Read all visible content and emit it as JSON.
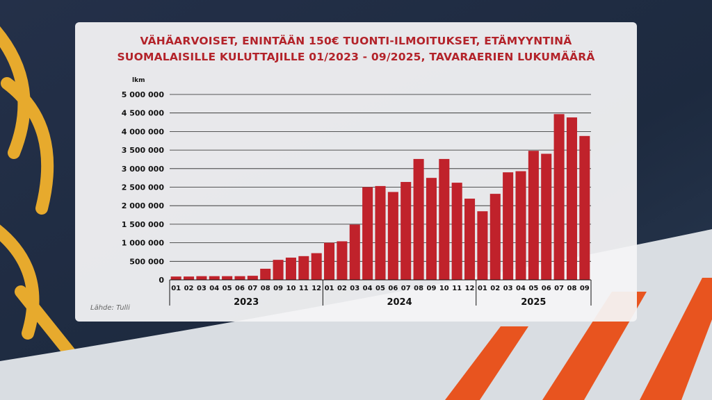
{
  "colors": {
    "bar": "#c0222b",
    "title": "#b3232a",
    "panel": "#f4f4f5"
  },
  "source": "Lähde: Tulli",
  "chart_data": {
    "type": "bar",
    "title_lines": [
      "VÄHÄARVOISET, ENINTÄÄN 150€ TUONTI-ILMOITUKSET, ETÄMYYNTINÄ",
      "SUOMALAISILLE KULUTTAJILLE 01/2023 - 09/2025, TAVARAERIEN LUKUMÄÄRÄ"
    ],
    "ylabel": "lkm",
    "ylim": [
      0,
      5000000
    ],
    "yticks": [
      0,
      500000,
      1000000,
      1500000,
      2000000,
      2500000,
      3000000,
      3500000,
      4000000,
      4500000,
      5000000
    ],
    "ytick_labels": [
      "0",
      "500 000",
      "1 000 000",
      "1 500 000",
      "2 000 000",
      "2 500 000",
      "3 000 000",
      "3 500 000",
      "4 000 000",
      "4 500 000",
      "5 000 000"
    ],
    "grid": true,
    "groups": [
      {
        "label": "2023",
        "months": [
          "01",
          "02",
          "03",
          "04",
          "05",
          "06",
          "07",
          "08",
          "09",
          "10",
          "11",
          "12"
        ]
      },
      {
        "label": "2024",
        "months": [
          "01",
          "02",
          "03",
          "04",
          "05",
          "06",
          "07",
          "08",
          "09",
          "10",
          "11",
          "12"
        ]
      },
      {
        "label": "2025",
        "months": [
          "01",
          "02",
          "03",
          "04",
          "05",
          "06",
          "07",
          "08",
          "09"
        ]
      }
    ],
    "values": [
      90000,
      90000,
      100000,
      100000,
      100000,
      100000,
      110000,
      300000,
      540000,
      600000,
      640000,
      720000,
      1000000,
      1040000,
      1490000,
      2500000,
      2530000,
      2370000,
      2640000,
      3260000,
      2750000,
      3260000,
      2620000,
      2190000,
      1850000,
      2320000,
      2900000,
      2930000,
      3480000,
      3400000,
      4470000,
      4380000,
      3880000
    ]
  }
}
